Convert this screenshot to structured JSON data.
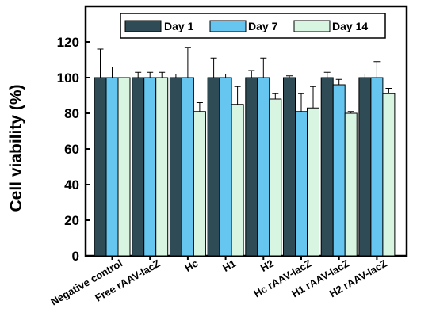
{
  "chart_data": {
    "type": "bar",
    "title": "",
    "xlabel": "",
    "ylabel": "Cell viability (%)",
    "ylim": [
      0,
      140
    ],
    "yticks": [
      0,
      20,
      40,
      60,
      80,
      100,
      120
    ],
    "grid": false,
    "legend_position": "top-right",
    "categories": [
      "Negative control",
      "Free rAAV-lacZ",
      "Hc",
      "H1",
      "H2",
      "Hc rAAV-lacZ",
      "H1 rAAV-lacZ",
      "H2 rAAV-lacZ"
    ],
    "series": [
      {
        "name": "Day 1",
        "color": "#2f4b55",
        "values": [
          100,
          100,
          100,
          100,
          100,
          100,
          100,
          100
        ],
        "errors": [
          16,
          3,
          2,
          11,
          4,
          1,
          3,
          2
        ]
      },
      {
        "name": "Day 7",
        "color": "#66c6f0",
        "values": [
          100,
          100,
          100,
          100,
          100,
          81,
          96,
          100
        ],
        "errors": [
          6,
          3,
          17,
          2,
          11,
          10,
          3,
          9
        ]
      },
      {
        "name": "Day 14",
        "color": "#d8f5e2",
        "values": [
          100,
          100,
          81,
          85,
          88,
          83,
          80,
          91
        ],
        "errors": [
          2,
          3,
          5,
          10,
          3,
          12,
          1,
          3
        ]
      }
    ]
  }
}
